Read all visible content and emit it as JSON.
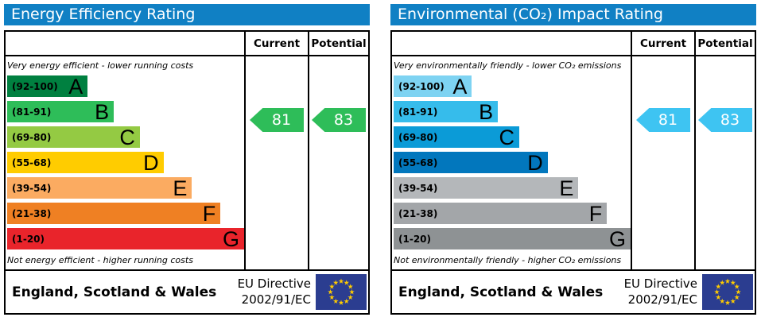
{
  "theme": {
    "header_bg": "#1080c4",
    "border_color": "#000000",
    "eu_flag_bg": "#2b3d90",
    "eu_star_color": "#ffcc00",
    "arrow_text_color": "#ffffff"
  },
  "chart_data": [
    {
      "type": "bar",
      "panel": "energy-efficiency",
      "title": "Energy Efficiency Rating",
      "columns": {
        "current": "Current",
        "potential": "Potential"
      },
      "caption_top": "Very energy efficient - lower running costs",
      "caption_bottom": "Not energy efficient - higher running costs",
      "bands": [
        {
          "letter": "A",
          "range": "(92-100)",
          "color": "#008040",
          "width_pct": 34
        },
        {
          "letter": "B",
          "range": "(81-91)",
          "color": "#2ebd59",
          "width_pct": 45
        },
        {
          "letter": "C",
          "range": "(69-80)",
          "color": "#94ca43",
          "width_pct": 56
        },
        {
          "letter": "D",
          "range": "(55-68)",
          "color": "#ffcc00",
          "width_pct": 66
        },
        {
          "letter": "E",
          "range": "(39-54)",
          "color": "#fbab61",
          "width_pct": 78
        },
        {
          "letter": "F",
          "range": "(21-38)",
          "color": "#ef8023",
          "width_pct": 90
        },
        {
          "letter": "G",
          "range": "(1-20)",
          "color": "#e9242b",
          "width_pct": 100
        }
      ],
      "current": {
        "value": 81,
        "color": "#2ebd59"
      },
      "potential": {
        "value": 83,
        "color": "#2ebd59"
      },
      "footer": {
        "region": "England, Scotland & Wales",
        "directive_line1": "EU Directive",
        "directive_line2": "2002/91/EC"
      }
    },
    {
      "type": "bar",
      "panel": "environmental-co2",
      "title": "Environmental (CO₂) Impact Rating",
      "columns": {
        "current": "Current",
        "potential": "Potential"
      },
      "caption_top": "Very environmentally friendly - lower CO₂ emissions",
      "caption_bottom": "Not environmentally friendly - higher CO₂ emissions",
      "bands": [
        {
          "letter": "A",
          "range": "(92-100)",
          "color": "#7ed3f2",
          "width_pct": 33
        },
        {
          "letter": "B",
          "range": "(81-91)",
          "color": "#36bceb",
          "width_pct": 44
        },
        {
          "letter": "C",
          "range": "(69-80)",
          "color": "#0b9bd7",
          "width_pct": 53
        },
        {
          "letter": "D",
          "range": "(55-68)",
          "color": "#0277bd",
          "width_pct": 65
        },
        {
          "letter": "E",
          "range": "(39-54)",
          "color": "#b4b7ba",
          "width_pct": 78
        },
        {
          "letter": "F",
          "range": "(21-38)",
          "color": "#a3a6a9",
          "width_pct": 90
        },
        {
          "letter": "G",
          "range": "(1-20)",
          "color": "#8e9294",
          "width_pct": 100
        }
      ],
      "current": {
        "value": 81,
        "color": "#3ec4f2"
      },
      "potential": {
        "value": 83,
        "color": "#3ec4f2"
      },
      "footer": {
        "region": "England, Scotland & Wales",
        "directive_line1": "EU Directive",
        "directive_line2": "2002/91/EC"
      }
    }
  ]
}
